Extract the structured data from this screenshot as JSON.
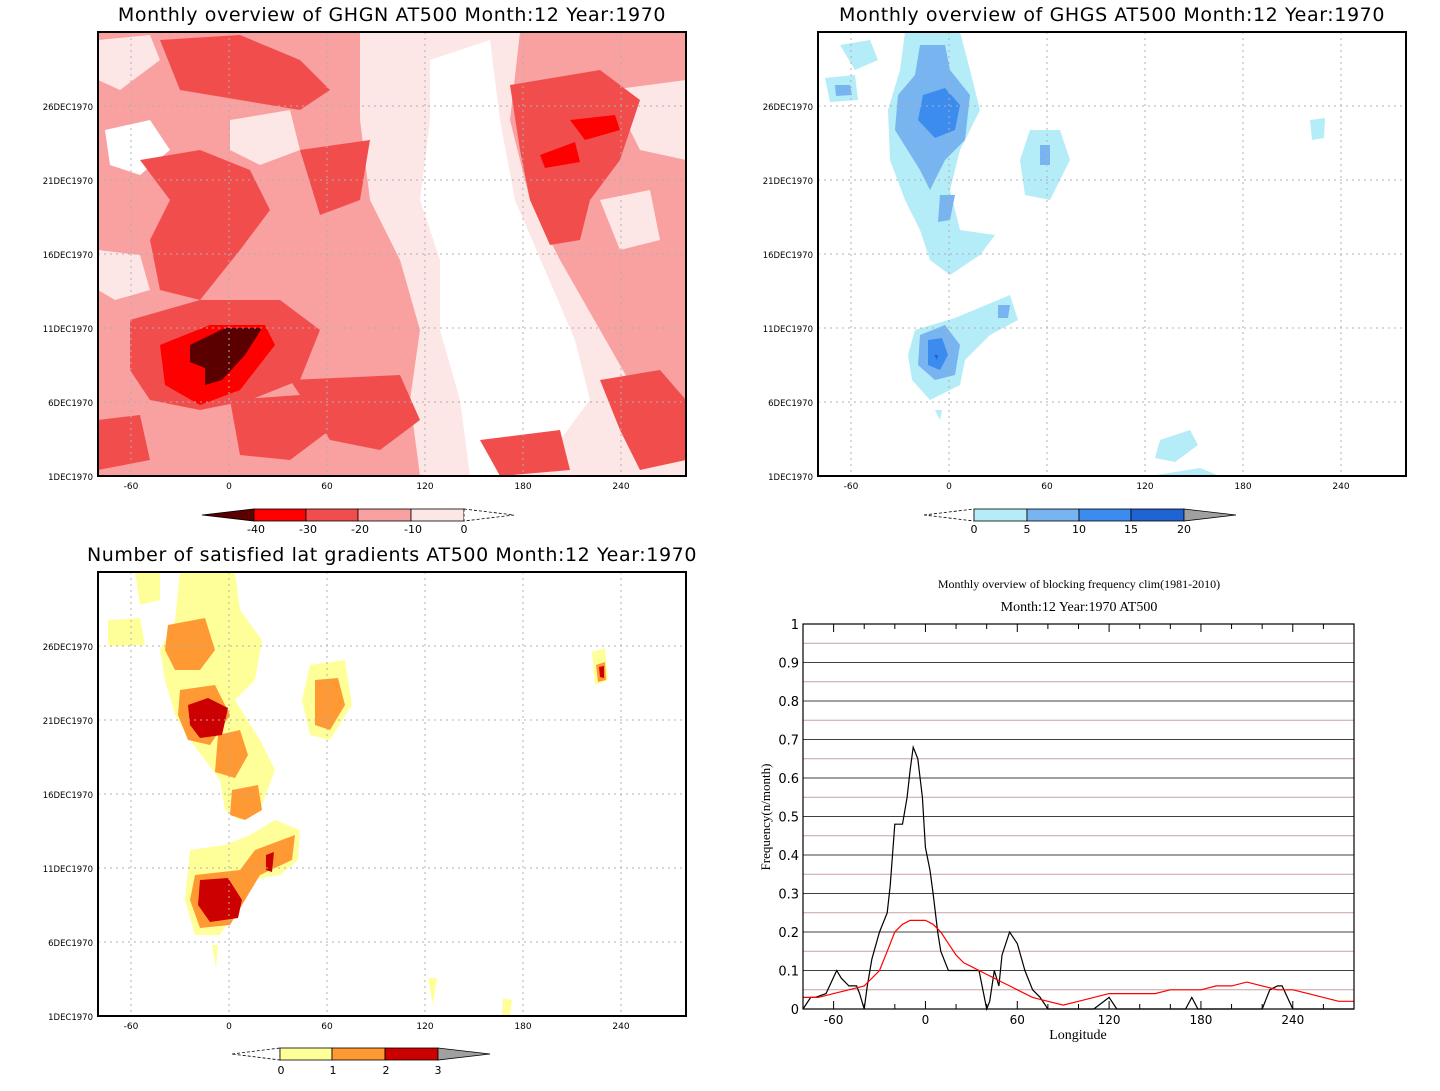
{
  "chart_data": [
    {
      "type": "heatmap",
      "title": "Monthly overview of GHGN AT500 Month:12 Year:1970",
      "xticks": [
        "-60",
        "0",
        "60",
        "120",
        "180",
        "240"
      ],
      "xtick_values": [
        -60,
        0,
        60,
        120,
        180,
        240
      ],
      "xlim": [
        -80,
        280
      ],
      "yticks": [
        "1DEC1970",
        "6DEC1970",
        "11DEC1970",
        "16DEC1970",
        "21DEC1970",
        "26DEC1970"
      ],
      "ytick_values": [
        1,
        6,
        11,
        16,
        21,
        26
      ],
      "ylim": [
        1,
        31
      ],
      "colorbar": {
        "labels": [
          "-40",
          "-30",
          "-20",
          "-10",
          "0"
        ],
        "colors": [
          "#5a0000",
          "#ff0000",
          "#f24d4d",
          "#f9a0a0",
          "#fde6e6"
        ],
        "left_arrow": "#5a0000",
        "right_arrow": "none"
      },
      "background": "#f9a0a0"
    },
    {
      "type": "heatmap",
      "title": "Monthly overview of GHGS AT500 Month:12 Year:1970",
      "xticks": [
        "-60",
        "0",
        "60",
        "120",
        "180",
        "240"
      ],
      "xtick_values": [
        -60,
        0,
        60,
        120,
        180,
        240
      ],
      "xlim": [
        -80,
        280
      ],
      "yticks": [
        "1DEC1970",
        "6DEC1970",
        "11DEC1970",
        "16DEC1970",
        "21DEC1970",
        "26DEC1970"
      ],
      "ytick_values": [
        1,
        6,
        11,
        16,
        21,
        26
      ],
      "ylim": [
        1,
        31
      ],
      "colorbar": {
        "labels": [
          "0",
          "5",
          "10",
          "15",
          "20"
        ],
        "colors": [
          "#b4ecf8",
          "#78b4f0",
          "#3c8cf0",
          "#1e64d2"
        ],
        "left_arrow": "none",
        "right_arrow": "#a0a0a0"
      },
      "background": "#ffffff"
    },
    {
      "type": "heatmap",
      "title": "Number of satisfied lat gradients AT500 Month:12 Year:1970",
      "xticks": [
        "-60",
        "0",
        "60",
        "120",
        "180",
        "240"
      ],
      "xtick_values": [
        -60,
        0,
        60,
        120,
        180,
        240
      ],
      "xlim": [
        -80,
        280
      ],
      "yticks": [
        "1DEC1970",
        "6DEC1970",
        "11DEC1970",
        "16DEC1970",
        "21DEC1970",
        "26DEC1970"
      ],
      "ytick_values": [
        1,
        6,
        11,
        16,
        21,
        26
      ],
      "ylim": [
        1,
        31
      ],
      "colorbar": {
        "labels": [
          "0",
          "1",
          "2",
          "3"
        ],
        "colors": [
          "#ffff99",
          "#ff9933",
          "#cc0000"
        ],
        "left_arrow": "none",
        "right_arrow": "#a0a0a0"
      },
      "background": "#ffffff"
    },
    {
      "type": "line",
      "title": "Monthly overview of blocking frequency clim(1981-2010)",
      "subtitle": "Month:12 Year:1970  AT500",
      "xlabel": "Longitude",
      "ylabel": "Frequency(n/month)",
      "xticks": [
        "-60",
        "0",
        "60",
        "120",
        "180",
        "240"
      ],
      "xtick_values": [
        -60,
        0,
        60,
        120,
        180,
        240
      ],
      "xlim": [
        -80,
        280
      ],
      "yticks": [
        "0",
        "0.1",
        "0.2",
        "0.3",
        "0.4",
        "0.5",
        "0.6",
        "0.7",
        "0.8",
        "0.9",
        "1"
      ],
      "ytick_values": [
        0,
        0.1,
        0.2,
        0.3,
        0.4,
        0.5,
        0.6,
        0.7,
        0.8,
        0.9,
        1
      ],
      "ylim": [
        0,
        1
      ],
      "series": [
        {
          "color": "#000000",
          "x": [
            -80,
            -75,
            -72,
            -65,
            -58,
            -55,
            -50,
            -45,
            -43,
            -40,
            -38,
            -35,
            -30,
            -25,
            -23,
            -20,
            -15,
            -12,
            -10,
            -8,
            -5,
            -2,
            0,
            3,
            5,
            8,
            10,
            15,
            20,
            25,
            30,
            35,
            40,
            42,
            45,
            48,
            50,
            55,
            60,
            65,
            70,
            75,
            80,
            85,
            100,
            110,
            120,
            125,
            130,
            170,
            174,
            178,
            220,
            225,
            230,
            233,
            240,
            280
          ],
          "y": [
            0,
            0.03,
            0.03,
            0.04,
            0.1,
            0.08,
            0.06,
            0.06,
            0.04,
            0,
            0.06,
            0.13,
            0.2,
            0.25,
            0.32,
            0.48,
            0.48,
            0.55,
            0.62,
            0.68,
            0.65,
            0.55,
            0.42,
            0.36,
            0.3,
            0.2,
            0.15,
            0.1,
            0.1,
            0.1,
            0.1,
            0.1,
            0,
            0.02,
            0.1,
            0.06,
            0.14,
            0.2,
            0.17,
            0.1,
            0.05,
            0.03,
            0,
            0,
            0,
            0,
            0.03,
            0,
            0,
            0,
            0.03,
            0,
            0,
            0.05,
            0.06,
            0.06,
            0,
            0
          ]
        },
        {
          "color": "#ff0000",
          "x": [
            -80,
            -70,
            -60,
            -50,
            -40,
            -30,
            -25,
            -20,
            -15,
            -10,
            -5,
            0,
            5,
            10,
            15,
            20,
            25,
            30,
            35,
            40,
            45,
            50,
            55,
            60,
            70,
            80,
            90,
            100,
            110,
            120,
            130,
            140,
            150,
            160,
            170,
            180,
            190,
            200,
            210,
            220,
            230,
            240,
            250,
            260,
            270,
            280
          ],
          "y": [
            0.03,
            0.03,
            0.04,
            0.05,
            0.06,
            0.1,
            0.15,
            0.2,
            0.22,
            0.23,
            0.23,
            0.23,
            0.22,
            0.2,
            0.17,
            0.14,
            0.12,
            0.11,
            0.1,
            0.09,
            0.08,
            0.07,
            0.06,
            0.05,
            0.03,
            0.02,
            0.01,
            0.02,
            0.03,
            0.04,
            0.04,
            0.04,
            0.04,
            0.05,
            0.05,
            0.05,
            0.06,
            0.06,
            0.07,
            0.06,
            0.05,
            0.05,
            0.04,
            0.03,
            0.02,
            0.02
          ]
        }
      ],
      "reference_lines": {
        "color": "#c8a0a0"
      }
    }
  ]
}
